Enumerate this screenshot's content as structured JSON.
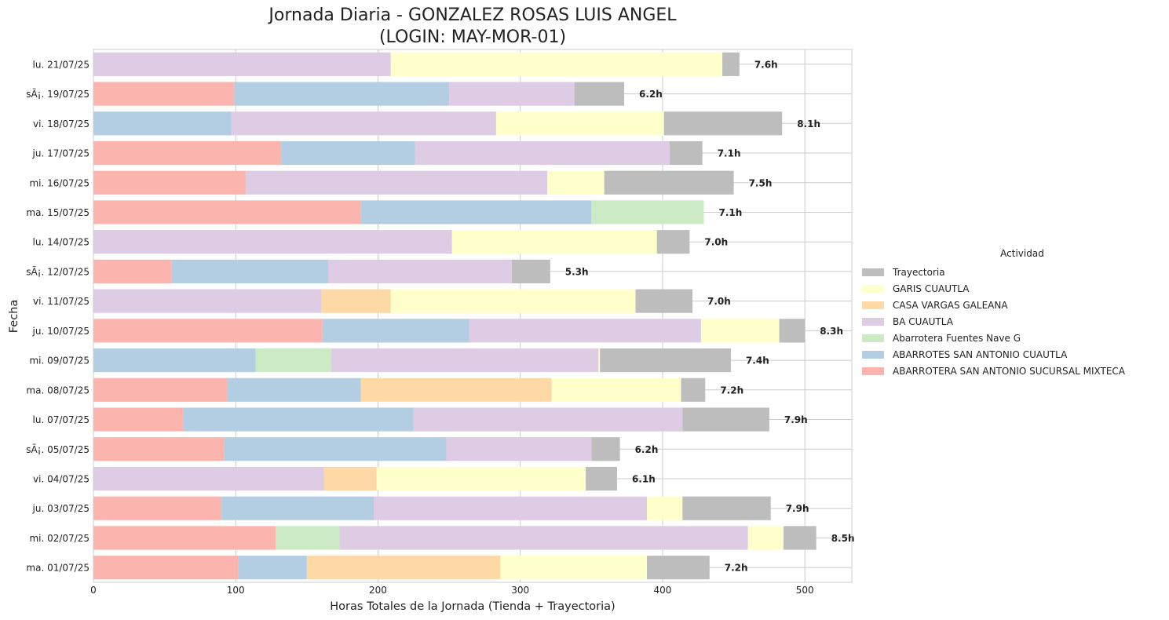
{
  "chart_data": {
    "type": "bar",
    "orientation": "horizontal",
    "stacked": true,
    "title_lines": [
      "Jornada Diaria - GONZALEZ ROSAS LUIS ANGEL",
      "(LOGIN: MAY-MOR-01)"
    ],
    "xlabel": "Horas Totales de la Jornada (Tienda + Trayectoria)",
    "ylabel": "Fecha",
    "xlim": [
      0,
      533
    ],
    "xticks": [
      0,
      100,
      200,
      300,
      400,
      500
    ],
    "grid": true,
    "legend": {
      "title": "Actividad",
      "placement": "right",
      "order": [
        "Trayectoria",
        "GARIS CUAUTLA",
        "CASA VARGAS GALEANA",
        "BA CUAUTLA",
        "Abarrotera Fuentes Nave G",
        "ABARROTES SAN ANTONIO CUAUTLA",
        "ABARROTERA SAN ANTONIO SUCURSAL MIXTECA"
      ]
    },
    "categories": [
      "lu. 21/07/25",
      "sÃ¡. 19/07/25",
      "vi. 18/07/25",
      "ju. 17/07/25",
      "mi. 16/07/25",
      "ma. 15/07/25",
      "lu. 14/07/25",
      "sÃ¡. 12/07/25",
      "vi. 11/07/25",
      "ju. 10/07/25",
      "mi. 09/07/25",
      "ma. 08/07/25",
      "lu. 07/07/25",
      "sÃ¡. 05/07/25",
      "vi. 04/07/25",
      "ju. 03/07/25",
      "mi. 02/07/25",
      "ma. 01/07/25"
    ],
    "series": [
      {
        "name": "ABARROTERA SAN ANTONIO SUCURSAL MIXTECA",
        "color": "#fbb4ae",
        "values": [
          0,
          99,
          0,
          132,
          107,
          188,
          0,
          55,
          0,
          161,
          0,
          94,
          63,
          92,
          0,
          90,
          128,
          102
        ]
      },
      {
        "name": "ABARROTES SAN ANTONIO CUAUTLA",
        "color": "#b3cde3",
        "values": [
          0,
          151,
          97,
          94,
          0,
          162,
          0,
          110,
          0,
          103,
          114,
          94,
          162,
          156,
          0,
          107,
          0,
          48
        ]
      },
      {
        "name": "Abarrotera Fuentes Nave G",
        "color": "#ccebc5",
        "values": [
          0,
          0,
          0,
          0,
          0,
          79,
          0,
          0,
          0,
          0,
          53,
          0,
          0,
          0,
          0,
          0,
          45,
          0
        ]
      },
      {
        "name": "BA CUAUTLA",
        "color": "#decbe4",
        "values": [
          209,
          88,
          186,
          179,
          212,
          0,
          252,
          129,
          160,
          163,
          188,
          0,
          189,
          102,
          162,
          192,
          287,
          0
        ]
      },
      {
        "name": "CASA VARGAS GALEANA",
        "color": "#fed9a6",
        "values": [
          0,
          0,
          0,
          0,
          0,
          0,
          0,
          0,
          49,
          0,
          0,
          134,
          0,
          0,
          37,
          0,
          0,
          136
        ]
      },
      {
        "name": "GARIS CUAUTLA",
        "color": "#ffffcc",
        "values": [
          233,
          0,
          118,
          0,
          40,
          0,
          144,
          0,
          172,
          55,
          1,
          91,
          0,
          0,
          147,
          25,
          25,
          103
        ]
      },
      {
        "name": "Trayectoria",
        "color": "#bdbdbd",
        "values": [
          12,
          35,
          83,
          23,
          91,
          0,
          23,
          27,
          40,
          18,
          92,
          17,
          61,
          20,
          22,
          62,
          23,
          44
        ]
      }
    ],
    "total_labels": [
      "7.6h",
      "6.2h",
      "8.1h",
      "7.1h",
      "7.5h",
      "7.1h",
      "7.0h",
      "5.3h",
      "7.0h",
      "8.3h",
      "7.4h",
      "7.2h",
      "7.9h",
      "6.2h",
      "6.1h",
      "7.9h",
      "8.5h",
      "7.2h"
    ]
  }
}
